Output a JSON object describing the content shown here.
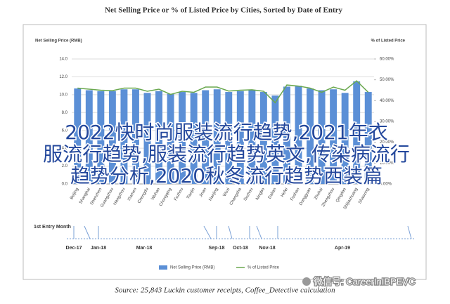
{
  "chart_data": {
    "type": "bar-line",
    "title": "Net Selling Price or % of Listed Price by Cities, Sorted by Date of Entry",
    "y_label": "Net Selling Price (RMB)",
    "y2_label": "% of Listed Price",
    "categories": [
      "Beijing",
      "Shanghai",
      "Shenzhen",
      "Guangzhou",
      "Hangzhou",
      "Xiamen",
      "Chengdu",
      "Wuhan",
      "Chongqing",
      "Fuzhou",
      "Tianjin",
      "Jinan",
      "Nanjing",
      "Wuxi",
      "Changsha",
      "Suzhou",
      "Ningbo",
      "Dalian",
      "Hefei",
      "Foshan",
      "Dongguan",
      "Zhuhai",
      "Zhengzhou",
      "Qingdao",
      "Shijiazhuang",
      "Shaoxing"
    ],
    "series": [
      {
        "name": "Net Selling Price (RMB)",
        "type": "bar",
        "color": "#5b8fd6",
        "values": [
          10.7,
          10.5,
          10.4,
          10.4,
          10.6,
          10.6,
          10.2,
          10.4,
          10.1,
          10.3,
          10.2,
          10.5,
          10.6,
          10.3,
          10.4,
          10.5,
          10.3,
          9.9,
          10.9,
          11.0,
          10.7,
          10.5,
          10.6,
          10.2,
          11.5,
          10.3
        ]
      },
      {
        "name": "% of Listed Price",
        "type": "line",
        "axis": "y2",
        "color": "#6aa84f",
        "values": [
          46,
          45.5,
          45,
          44.8,
          46,
          46,
          44.5,
          45.5,
          43,
          44.5,
          44,
          46.5,
          46.5,
          44.6,
          45,
          45.2,
          44.5,
          39,
          47.5,
          47,
          46,
          44,
          46.5,
          45,
          49.5,
          44
        ]
      }
    ],
    "ylim": [
      0,
      14
    ],
    "yticks": [
      {
        "value": 0,
        "label": "0.0"
      },
      {
        "value": 2,
        "label": "2.0"
      },
      {
        "value": 4,
        "label": "4.0"
      },
      {
        "value": 6,
        "label": "6.0"
      },
      {
        "value": 8,
        "label": "8.0"
      },
      {
        "value": 10,
        "label": "10.0"
      },
      {
        "value": 12,
        "label": "12.0"
      },
      {
        "value": 14,
        "label": "14.0"
      }
    ],
    "y2lim": [
      0,
      60
    ],
    "y2ticks": [
      {
        "value": 0,
        "label": "0.00%"
      },
      {
        "value": 10,
        "label": "10.00%"
      },
      {
        "value": 20,
        "label": "20.00%"
      },
      {
        "value": 30,
        "label": "30.00%"
      },
      {
        "value": 40,
        "label": "40.00%"
      },
      {
        "value": 50,
        "label": "50.00%"
      },
      {
        "value": 60,
        "label": "60.00%"
      }
    ],
    "grid": true,
    "timeline": {
      "title": "1st Entry Month",
      "labels": [
        "Dec-17",
        "Jan-18",
        "Mar-18",
        "Sep-18",
        "Oct-18",
        "Nov-18",
        "Apr-19"
      ]
    },
    "source": "Source: 25,843 Luckin customer receipts, Coffee_Detective calculation"
  },
  "overlay": {
    "lines": [
      "2022快时尚服装流行趋势,2021年衣",
      "服流行趋势,服装流行趋势英文,传染病流行",
      "趋势分析,2020秋冬流行趋势西装篇"
    ],
    "watermark": "微信号: CareerInIBPEVC"
  }
}
